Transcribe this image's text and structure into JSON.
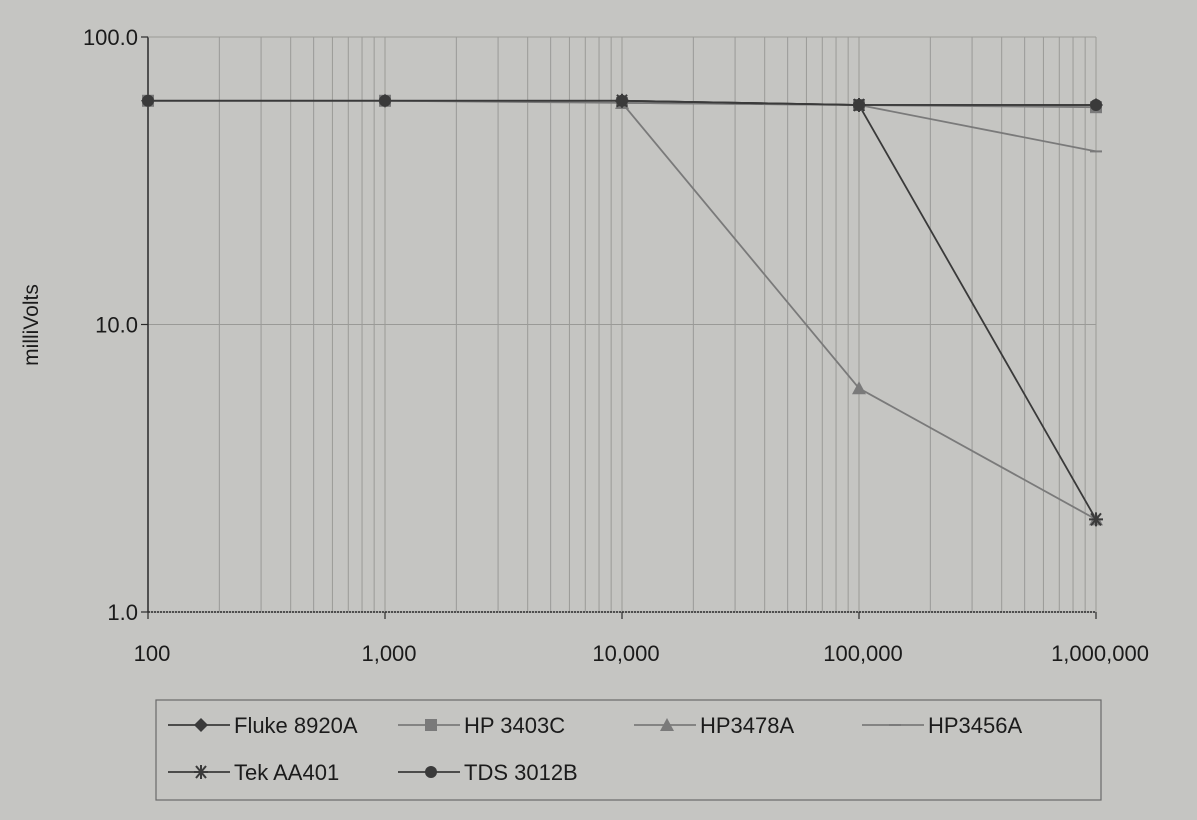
{
  "chart_data": {
    "type": "line",
    "title": "",
    "xlabel": "",
    "ylabel": "milliVolts",
    "x_scale": "log",
    "y_scale": "log",
    "xlim": [
      100,
      1000000
    ],
    "ylim": [
      1,
      100
    ],
    "grid": true,
    "legend_position": "bottom",
    "x": [
      100,
      1000,
      10000,
      100000,
      1000000
    ],
    "x_tick_labels": [
      "100",
      "1,000",
      "10,000",
      "100,000",
      "1,000,000"
    ],
    "y_ticks": [
      1,
      10,
      100
    ],
    "y_tick_labels": [
      "1.0",
      "10.0",
      "100.0"
    ],
    "series": [
      {
        "name": "Fluke 8920A",
        "marker": "diamond",
        "values": [
          60,
          60,
          60,
          58,
          58
        ]
      },
      {
        "name": "HP 3403C",
        "marker": "square",
        "values": [
          60,
          60,
          59,
          58,
          57
        ]
      },
      {
        "name": "HP3478A",
        "marker": "triangle",
        "values": [
          null,
          null,
          59,
          6,
          2.1
        ]
      },
      {
        "name": "HP3456A",
        "marker": "dash",
        "values": [
          null,
          null,
          59,
          58,
          40
        ]
      },
      {
        "name": "Tek AA401",
        "marker": "star",
        "values": [
          null,
          null,
          60,
          58,
          2.1
        ]
      },
      {
        "name": "TDS 3012B",
        "marker": "circle",
        "values": [
          60,
          60,
          60,
          58,
          58
        ]
      }
    ],
    "colors": {
      "background": "#c5c5c2",
      "grid": "#9a9a97",
      "axis": "#2a2a2a",
      "dark_series": "#3a3a3a",
      "light_series": "#7a7a7a"
    }
  }
}
